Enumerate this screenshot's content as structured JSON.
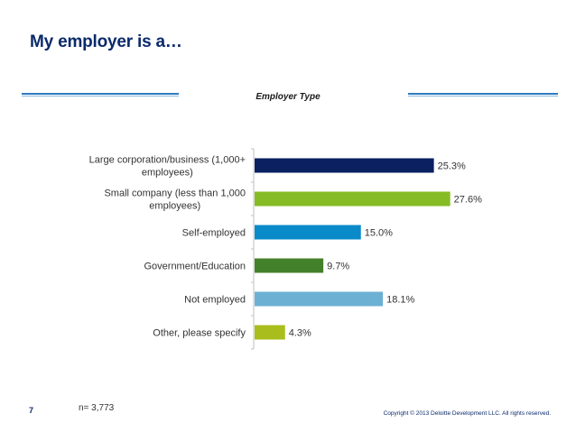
{
  "slide": {
    "title": "My employer is a…",
    "page_number": "7",
    "sample_size": "n= 3,773",
    "copyright": "Copyright © 2013 Deloitte Development LLC. All rights reserved.",
    "rule_color": "#2f7bbf"
  },
  "chart_data": {
    "type": "bar",
    "orientation": "horizontal",
    "title": "Employer Type",
    "categories": [
      [
        "Large corporation/business (1,000+",
        "employees)"
      ],
      [
        "Small company (less than 1,000",
        "employees)"
      ],
      [
        "Self-employed"
      ],
      [
        "Government/Education"
      ],
      [
        "Not employed"
      ],
      [
        "Other, please specify"
      ]
    ],
    "values": [
      25.3,
      27.6,
      15.0,
      9.7,
      18.1,
      4.3
    ],
    "value_labels": [
      "25.3%",
      "27.6%",
      "15.0%",
      "9.7%",
      "18.1%",
      "4.3%"
    ],
    "colors": [
      "#0a2060",
      "#86bc25",
      "#0b8ac9",
      "#43802a",
      "#6cb0d4",
      "#a9be1c"
    ],
    "xlim": [
      0,
      30
    ],
    "grid": false,
    "legend": "none"
  }
}
